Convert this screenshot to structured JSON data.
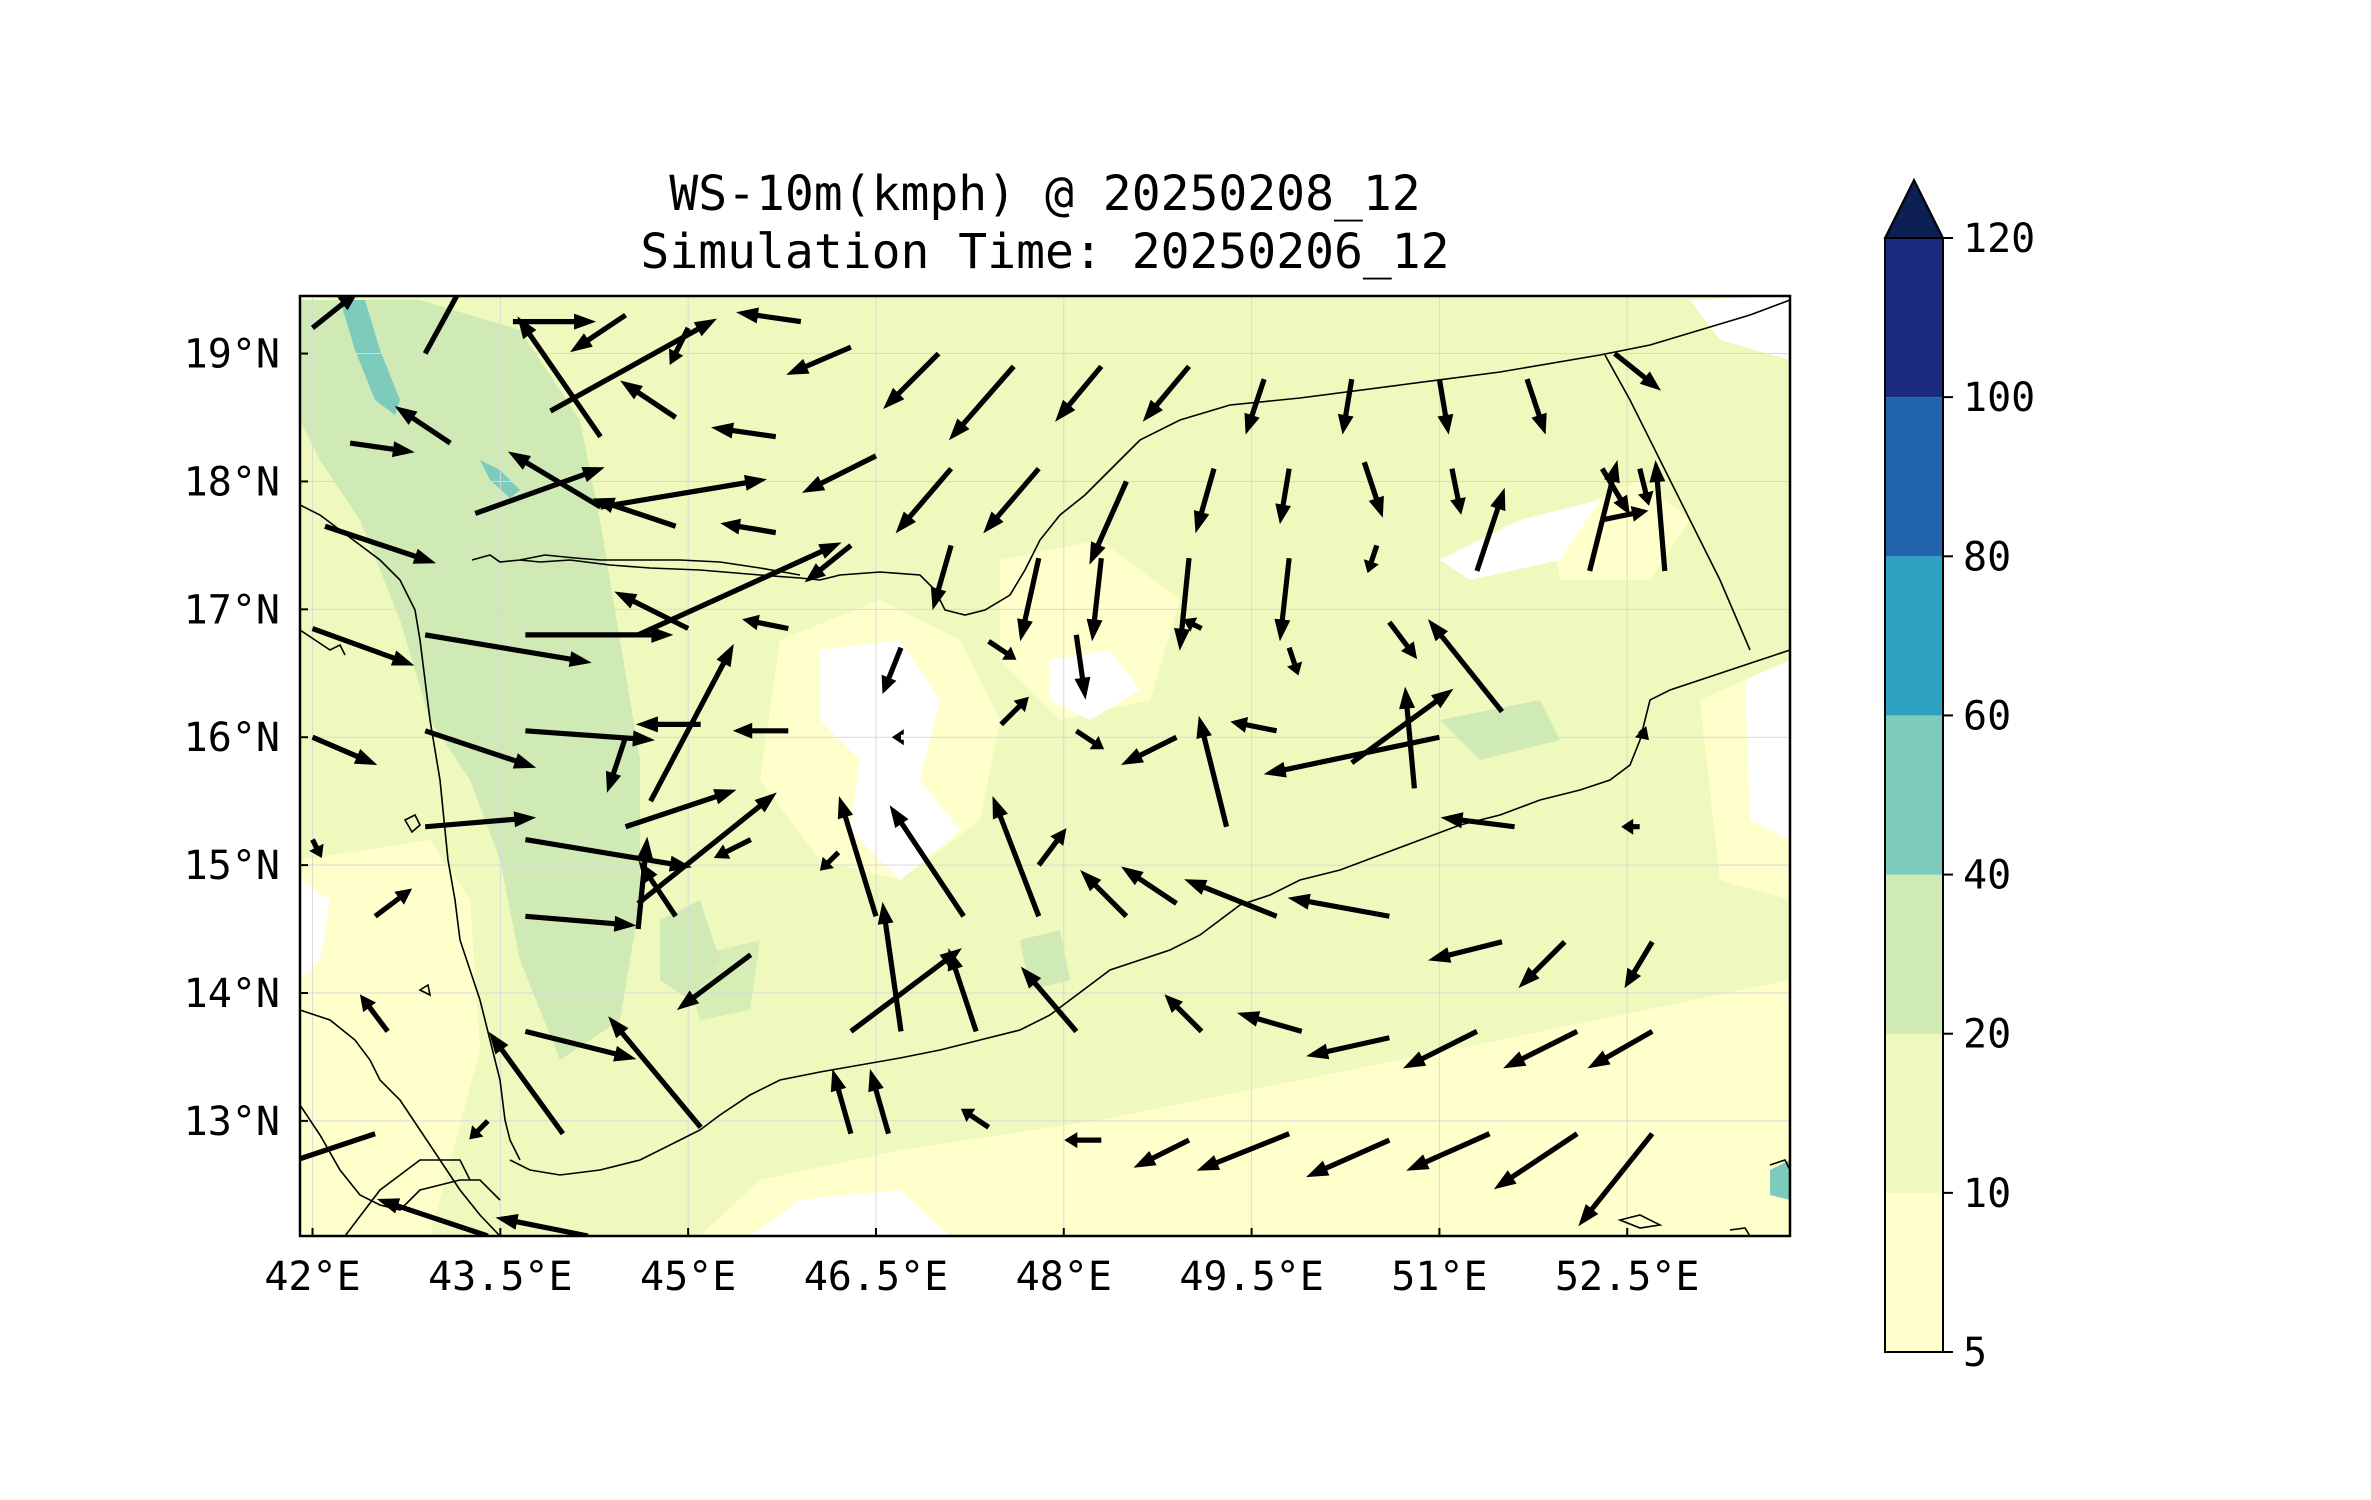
{
  "title_line1": "WS-10m(kmph) @ 20250208_12",
  "title_line2": "Simulation Time: 20250206_12",
  "colors": {
    "5-10": "#ffffcc",
    "10-20": "#f0f9bd",
    "20-40": "#cfeab4",
    "40-60": "#7ccbbc",
    "60-80": "#2ca1c2",
    "80-100": "#2164ab",
    "100-120": "#1b2a80",
    "over": "#0c1e52"
  },
  "chart_data": {
    "type": "map",
    "lon_ticks": [
      "42°E",
      "43.5°E",
      "45°E",
      "46.5°E",
      "48°E",
      "49.5°E",
      "51°E",
      "52.5°E"
    ],
    "lon_values": [
      42,
      43.5,
      45,
      46.5,
      48,
      49.5,
      51,
      52.5
    ],
    "lat_ticks": [
      "19°N",
      "18°N",
      "17°N",
      "16°N",
      "15°N",
      "14°N",
      "13°N"
    ],
    "lat_values": [
      19,
      18,
      17,
      16,
      15,
      14,
      13
    ],
    "xlim": [
      41.9,
      53.8
    ],
    "ylim": [
      12.1,
      19.45
    ],
    "colorbar": {
      "levels": [
        5,
        10,
        20,
        40,
        60,
        80,
        100,
        120
      ],
      "labels": [
        "5",
        "10",
        "20",
        "40",
        "60",
        "80",
        "100",
        "120"
      ],
      "extend": "max"
    },
    "wind_vectors": [
      [
        42.0,
        19.2,
        0.25,
        0.2
      ],
      [
        42.9,
        19.0,
        0.3,
        0.55
      ],
      [
        43.6,
        19.25,
        0.45,
        0
      ],
      [
        44.5,
        19.3,
        -0.3,
        -0.2
      ],
      [
        45.0,
        19.2,
        -0.1,
        -0.2
      ],
      [
        45.9,
        19.25,
        -0.35,
        0.05
      ],
      [
        46.3,
        19.05,
        -0.35,
        -0.15
      ],
      [
        47.0,
        19.0,
        -0.3,
        -0.3
      ],
      [
        47.6,
        18.9,
        -0.35,
        -0.4
      ],
      [
        48.3,
        18.9,
        -0.25,
        -0.3
      ],
      [
        49.0,
        18.9,
        -0.25,
        -0.3
      ],
      [
        49.6,
        18.8,
        -0.1,
        -0.3
      ],
      [
        50.3,
        18.8,
        -0.05,
        -0.3
      ],
      [
        51.0,
        18.8,
        0.05,
        -0.3
      ],
      [
        51.7,
        18.8,
        0.1,
        -0.3
      ],
      [
        52.4,
        19.0,
        0.25,
        -0.2
      ],
      [
        42.3,
        18.3,
        0.35,
        -0.05
      ],
      [
        43.1,
        18.3,
        -0.3,
        0.2
      ],
      [
        43.9,
        18.55,
        0.9,
        0.5
      ],
      [
        44.3,
        18.35,
        -0.45,
        0.65
      ],
      [
        44.9,
        18.5,
        -0.3,
        0.2
      ],
      [
        45.7,
        18.35,
        -0.35,
        0.05
      ],
      [
        46.5,
        18.2,
        -0.4,
        -0.2
      ],
      [
        47.1,
        18.1,
        -0.3,
        -0.35
      ],
      [
        47.8,
        18.1,
        -0.3,
        -0.35
      ],
      [
        48.5,
        18.0,
        -0.2,
        -0.45
      ],
      [
        49.2,
        18.1,
        -0.1,
        -0.35
      ],
      [
        49.8,
        18.1,
        -0.05,
        -0.3
      ],
      [
        50.4,
        18.15,
        0.1,
        -0.3
      ],
      [
        51.1,
        18.1,
        0.05,
        -0.25
      ],
      [
        52.3,
        18.1,
        0.15,
        -0.25
      ],
      [
        52.6,
        18.1,
        0.05,
        -0.2
      ],
      [
        42.1,
        17.65,
        0.6,
        -0.2
      ],
      [
        43.3,
        17.75,
        0.7,
        0.25
      ],
      [
        44.3,
        17.8,
        0.9,
        0.15
      ],
      [
        44.3,
        17.8,
        -0.5,
        0.3
      ],
      [
        44.9,
        17.65,
        -0.45,
        0.15
      ],
      [
        45.7,
        17.6,
        -0.3,
        0.05
      ],
      [
        46.3,
        17.5,
        -0.25,
        -0.2
      ],
      [
        47.1,
        17.5,
        -0.1,
        -0.35
      ],
      [
        47.8,
        17.4,
        -0.1,
        -0.45
      ],
      [
        48.3,
        17.4,
        -0.05,
        -0.45
      ],
      [
        49.0,
        17.4,
        -0.05,
        -0.5
      ],
      [
        49.8,
        17.4,
        -0.05,
        -0.45
      ],
      [
        50.5,
        17.5,
        -0.05,
        -0.15
      ],
      [
        51.3,
        17.3,
        0.15,
        0.45
      ],
      [
        52.2,
        17.3,
        0.15,
        0.6
      ],
      [
        52.3,
        17.7,
        0.25,
        0.05
      ],
      [
        52.8,
        17.3,
        -0.05,
        0.6
      ],
      [
        42.0,
        16.85,
        0.55,
        -0.2
      ],
      [
        42.9,
        16.8,
        0.9,
        -0.15
      ],
      [
        43.7,
        16.8,
        0.8,
        0
      ],
      [
        44.6,
        16.8,
        1.1,
        0.5
      ],
      [
        45.0,
        16.85,
        -0.4,
        0.2
      ],
      [
        45.8,
        16.85,
        -0.25,
        0.05
      ],
      [
        46.7,
        16.7,
        -0.1,
        -0.25
      ],
      [
        47.4,
        16.75,
        0.15,
        -0.1
      ],
      [
        48.1,
        16.8,
        0.05,
        -0.35
      ],
      [
        49.1,
        16.85,
        -0.1,
        0.05
      ],
      [
        49.8,
        16.7,
        0.05,
        -0.15
      ],
      [
        50.6,
        16.9,
        0.15,
        -0.2
      ],
      [
        51.5,
        16.2,
        -0.4,
        0.5
      ],
      [
        42.0,
        16.0,
        0.35,
        -0.15
      ],
      [
        42.9,
        16.05,
        0.6,
        -0.2
      ],
      [
        43.7,
        16.05,
        0.7,
        -0.05
      ],
      [
        44.5,
        16.0,
        -0.1,
        -0.3
      ],
      [
        44.7,
        15.5,
        0.45,
        0.85
      ],
      [
        45.1,
        16.1,
        -0.35,
        0
      ],
      [
        45.8,
        16.05,
        -0.3,
        0
      ],
      [
        46.7,
        16.0,
        -0.05,
        0
      ],
      [
        47.5,
        16.1,
        0.15,
        0.15
      ],
      [
        48.1,
        16.05,
        0.15,
        -0.1
      ],
      [
        48.9,
        16.0,
        -0.3,
        -0.15
      ],
      [
        49.7,
        16.05,
        -0.25,
        0.05
      ],
      [
        50.3,
        15.8,
        0.55,
        0.4
      ],
      [
        51.0,
        16.0,
        -0.95,
        -0.2
      ],
      [
        50.8,
        15.6,
        -0.05,
        0.55
      ],
      [
        52.6,
        16.05,
        0.05,
        -0.05
      ],
      [
        42.0,
        15.2,
        0.05,
        -0.1
      ],
      [
        42.9,
        15.3,
        0.6,
        0.05
      ],
      [
        43.7,
        15.2,
        0.9,
        -0.15
      ],
      [
        44.5,
        15.3,
        0.6,
        0.2
      ],
      [
        44.6,
        14.7,
        0.75,
        0.6
      ],
      [
        45.5,
        15.2,
        -0.2,
        -0.1
      ],
      [
        46.2,
        15.1,
        -0.1,
        -0.1
      ],
      [
        46.5,
        14.6,
        -0.2,
        0.65
      ],
      [
        47.2,
        14.6,
        -0.4,
        0.6
      ],
      [
        47.8,
        14.6,
        -0.25,
        0.65
      ],
      [
        47.8,
        15.0,
        0.15,
        0.2
      ],
      [
        48.5,
        14.6,
        -0.25,
        0.25
      ],
      [
        49.3,
        15.3,
        -0.15,
        0.6
      ],
      [
        49.0,
        15.1,
        0,
        0
      ],
      [
        51.6,
        15.3,
        -0.4,
        0.05
      ],
      [
        52.6,
        15.3,
        -0.1,
        0
      ],
      [
        42.5,
        14.6,
        0.2,
        0.15
      ],
      [
        43.7,
        14.6,
        0.6,
        -0.05
      ],
      [
        44.6,
        14.5,
        0.05,
        0.5
      ],
      [
        44.9,
        14.6,
        -0.2,
        0.3
      ],
      [
        45.5,
        14.3,
        -0.4,
        -0.3
      ],
      [
        46.3,
        13.7,
        0.6,
        0.45
      ],
      [
        46.7,
        13.7,
        -0.1,
        0.7
      ],
      [
        47.3,
        13.7,
        -0.15,
        0.45
      ],
      [
        48.1,
        13.7,
        -0.3,
        0.35
      ],
      [
        48.9,
        14.7,
        -0.3,
        0.2
      ],
      [
        49.7,
        14.6,
        -0.5,
        0.2
      ],
      [
        50.6,
        14.6,
        -0.55,
        0.1
      ],
      [
        51.5,
        14.4,
        -0.4,
        -0.1
      ],
      [
        52.0,
        14.4,
        -0.25,
        -0.25
      ],
      [
        52.7,
        14.4,
        -0.15,
        -0.25
      ],
      [
        42.6,
        13.7,
        -0.15,
        0.2
      ],
      [
        43.7,
        13.7,
        0.6,
        -0.15
      ],
      [
        44.0,
        12.9,
        -0.4,
        0.55
      ],
      [
        45.1,
        12.95,
        -0.5,
        0.6
      ],
      [
        46.3,
        12.9,
        -0.1,
        0.35
      ],
      [
        46.6,
        12.9,
        -0.1,
        0.35
      ],
      [
        47.4,
        12.95,
        -0.15,
        0.1
      ],
      [
        48.3,
        12.85,
        -0.2,
        0
      ],
      [
        49.1,
        13.7,
        -0.2,
        0.2
      ],
      [
        49.9,
        13.7,
        -0.35,
        0.1
      ],
      [
        50.6,
        13.65,
        -0.45,
        -0.1
      ],
      [
        51.3,
        13.7,
        -0.4,
        -0.2
      ],
      [
        52.1,
        13.7,
        -0.4,
        -0.2
      ],
      [
        52.7,
        13.7,
        -0.35,
        -0.2
      ],
      [
        42.5,
        12.9,
        -0.6,
        -0.2
      ],
      [
        43.4,
        13.0,
        -0.1,
        -0.1
      ],
      [
        43.4,
        12.1,
        -0.6,
        0.2
      ],
      [
        44.2,
        12.1,
        -0.5,
        0.1
      ],
      [
        49.0,
        12.85,
        -0.3,
        -0.15
      ],
      [
        49.8,
        12.9,
        -0.5,
        -0.2
      ],
      [
        50.6,
        12.85,
        -0.45,
        -0.2
      ],
      [
        51.4,
        12.9,
        -0.45,
        -0.2
      ],
      [
        52.1,
        12.9,
        -0.45,
        -0.3
      ],
      [
        52.7,
        12.9,
        -0.4,
        -0.5
      ]
    ]
  }
}
